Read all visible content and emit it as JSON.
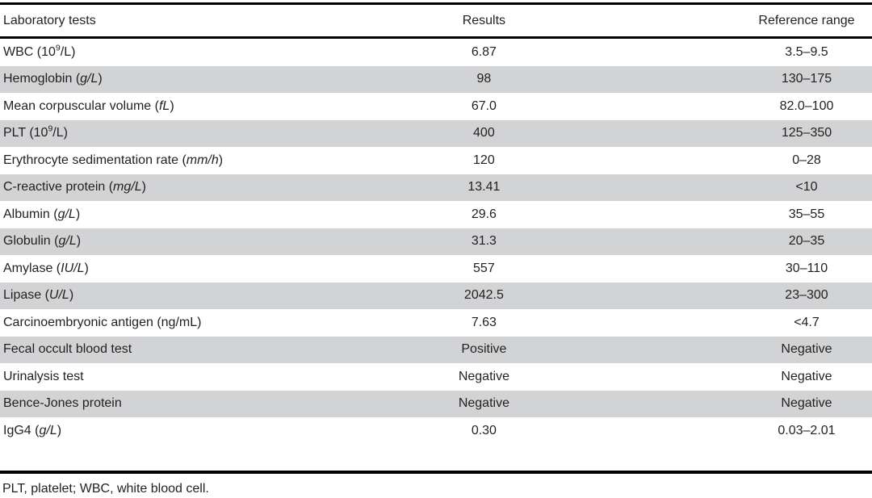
{
  "table": {
    "headers": [
      {
        "label": "Laboratory tests"
      },
      {
        "label": "Results"
      },
      {
        "label": "Reference range"
      }
    ],
    "rows": [
      {
        "test": [
          {
            "text": "WBC (10"
          },
          {
            "text": "9",
            "style": "sup"
          },
          {
            "text": "/L)"
          }
        ],
        "result": "6.87",
        "range": "3.5–9.5"
      },
      {
        "test": [
          {
            "text": "Hemoglobin ("
          },
          {
            "text": "g/L",
            "style": "italic"
          },
          {
            "text": ")"
          }
        ],
        "result": "98",
        "range": "130–175"
      },
      {
        "test": [
          {
            "text": "Mean corpuscular volume ("
          },
          {
            "text": "fL",
            "style": "italic"
          },
          {
            "text": ")"
          }
        ],
        "result": "67.0",
        "range": "82.0–100"
      },
      {
        "test": [
          {
            "text": "PLT (10"
          },
          {
            "text": "9",
            "style": "sup"
          },
          {
            "text": "/L)"
          }
        ],
        "result": "400",
        "range": "125–350"
      },
      {
        "test": [
          {
            "text": "Erythrocyte sedimentation rate ("
          },
          {
            "text": "mm/h",
            "style": "italic"
          },
          {
            "text": ")"
          }
        ],
        "result": "120",
        "range": "0–28"
      },
      {
        "test": [
          {
            "text": "C-reactive protein ("
          },
          {
            "text": "mg/L",
            "style": "italic"
          },
          {
            "text": ")"
          }
        ],
        "result": "13.41",
        "range": "<10"
      },
      {
        "test": [
          {
            "text": "Albumin ("
          },
          {
            "text": "g/L",
            "style": "italic"
          },
          {
            "text": ")"
          }
        ],
        "result": "29.6",
        "range": "35–55"
      },
      {
        "test": [
          {
            "text": "Globulin ("
          },
          {
            "text": "g/L",
            "style": "italic"
          },
          {
            "text": ")"
          }
        ],
        "result": "31.3",
        "range": "20–35"
      },
      {
        "test": [
          {
            "text": "Amylase ("
          },
          {
            "text": "IU/L",
            "style": "italic"
          },
          {
            "text": ")"
          }
        ],
        "result": "557",
        "range": "30–110"
      },
      {
        "test": [
          {
            "text": "Lipase ("
          },
          {
            "text": "U/L",
            "style": "italic"
          },
          {
            "text": ")"
          }
        ],
        "result": "2042.5",
        "range": "23–300"
      },
      {
        "test": [
          {
            "text": "Carcinoembryonic antigen (ng/mL)"
          }
        ],
        "result": "7.63",
        "range": "<4.7"
      },
      {
        "test": [
          {
            "text": "Fecal occult blood test"
          }
        ],
        "result": "Positive",
        "range": "Negative"
      },
      {
        "test": [
          {
            "text": "Urinalysis test"
          }
        ],
        "result": "Negative",
        "range": "Negative"
      },
      {
        "test": [
          {
            "text": "Bence-Jones protein"
          }
        ],
        "result": "Negative",
        "range": "Negative"
      },
      {
        "test": [
          {
            "text": "IgG4 ("
          },
          {
            "text": "g/L",
            "style": "italic"
          },
          {
            "text": ")"
          }
        ],
        "result": "0.30",
        "range": "0.03–2.01"
      }
    ],
    "footnote": "PLT, platelet; WBC, white blood cell.",
    "colors": {
      "shaded_row": "#d1d3d4",
      "rule": "#000000",
      "text": "#231f20"
    }
  }
}
